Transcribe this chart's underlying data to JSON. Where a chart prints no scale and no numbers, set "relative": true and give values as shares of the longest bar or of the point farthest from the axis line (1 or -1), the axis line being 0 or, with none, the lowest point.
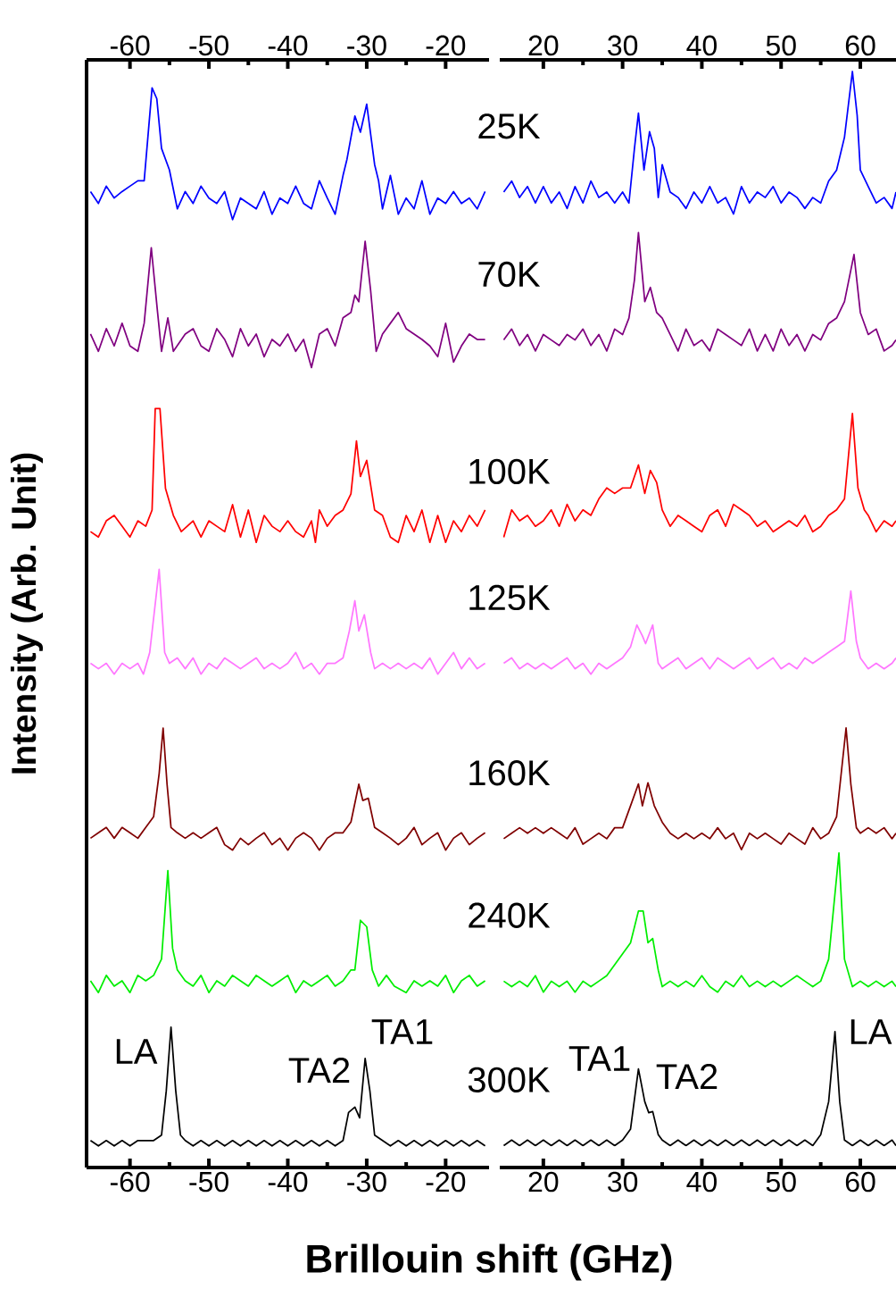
{
  "chart_data": [
    {
      "type": "line",
      "relative": true,
      "ylabel": "Intensity (Arb. Unit)",
      "xlabel": "Brillouin shift (GHz)",
      "xlim": [
        -65.5,
        -14.5
      ],
      "xticks": [
        -60,
        -50,
        -40,
        -30,
        -20
      ],
      "x2lim": [
        -65.5,
        -14.5
      ],
      "x2ticks": [
        -60,
        -50,
        -40,
        -30,
        -20
      ],
      "marker": "none",
      "annotations": [
        "LA",
        "TA2",
        "TA1"
      ],
      "series": [
        {
          "color": "#0000ff",
          "x": [
            -65,
            -64,
            -63,
            -62,
            -61,
            -60,
            -59,
            -58.2,
            -57.2,
            -56.6,
            -56,
            -55,
            -54,
            -53,
            -52,
            -51,
            -50,
            -49,
            -48,
            -47,
            -46,
            -45,
            -44,
            -43,
            -42,
            -41,
            -40,
            -39,
            -38,
            -37,
            -36,
            -35,
            -34,
            -33,
            -32.5,
            -31.5,
            -30.8,
            -30,
            -29,
            -28.5,
            -28,
            -27,
            -26,
            -25,
            -24,
            -23,
            -22,
            -21,
            -20,
            -19,
            -18,
            -17,
            -16,
            -15
          ],
          "values": [
            0.904,
            0.893,
            0.909,
            0.898,
            0.904,
            0.909,
            0.914,
            0.914,
            1,
            0.99,
            0.944,
            0.924,
            0.888,
            0.904,
            0.893,
            0.909,
            0.898,
            0.893,
            0.904,
            0.878,
            0.898,
            0.893,
            0.888,
            0.904,
            0.883,
            0.898,
            0.893,
            0.909,
            0.893,
            0.888,
            0.914,
            0.898,
            0.883,
            0.919,
            0.934,
            0.974,
            0.959,
            0.985,
            0.929,
            0.914,
            0.888,
            0.919,
            0.883,
            0.898,
            0.888,
            0.914,
            0.883,
            0.898,
            0.893,
            0.904,
            0.893,
            0.898,
            0.888,
            0.904
          ]
        },
        {
          "color": "#800080",
          "x": [
            -65,
            -64,
            -63,
            -62,
            -61,
            -60,
            -59,
            -58.2,
            -57.3,
            -56.5,
            -56,
            -55.2,
            -54.5,
            -53,
            -52,
            -51,
            -50,
            -49,
            -48,
            -47,
            -46,
            -45,
            -44,
            -43,
            -42,
            -41,
            -40,
            -39,
            -38,
            -37,
            -36,
            -35,
            -34,
            -33,
            -32,
            -31.5,
            -31,
            -30.2,
            -29.5,
            -28.8,
            -28,
            -27,
            -26,
            -25,
            -24,
            -23,
            -22,
            -21,
            -20,
            -19,
            -18,
            -17,
            -16,
            -15
          ],
          "values": [
            0.772,
            0.756,
            0.777,
            0.761,
            0.782,
            0.761,
            0.756,
            0.782,
            0.852,
            0.792,
            0.756,
            0.787,
            0.756,
            0.772,
            0.777,
            0.761,
            0.756,
            0.777,
            0.767,
            0.751,
            0.777,
            0.761,
            0.772,
            0.751,
            0.767,
            0.761,
            0.772,
            0.756,
            0.767,
            0.741,
            0.772,
            0.777,
            0.761,
            0.787,
            0.792,
            0.808,
            0.802,
            0.858,
            0.812,
            0.756,
            0.772,
            0.782,
            0.792,
            0.777,
            0.772,
            0.767,
            0.761,
            0.751,
            0.782,
            0.746,
            0.761,
            0.772,
            0.767,
            0.767
          ]
        },
        {
          "color": "#ff0000",
          "x": [
            -65,
            -64,
            -63,
            -62,
            -61,
            -60,
            -59,
            -58,
            -57.2,
            -56.8,
            -56.2,
            -55.5,
            -54.5,
            -53.5,
            -52,
            -51,
            -50,
            -49,
            -48,
            -47,
            -46,
            -45,
            -44,
            -43,
            -42,
            -41,
            -40,
            -39,
            -38,
            -37,
            -36.5,
            -36,
            -35,
            -34,
            -33,
            -32,
            -31.3,
            -30.8,
            -30,
            -29,
            -28,
            -27,
            -26,
            -25,
            -24,
            -23,
            -22,
            -21,
            -20,
            -19,
            -18,
            -17,
            -16,
            -15
          ],
          "values": [
            0.589,
            0.584,
            0.599,
            0.604,
            0.594,
            0.584,
            0.599,
            0.594,
            0.609,
            0.703,
            0.703,
            0.629,
            0.604,
            0.589,
            0.599,
            0.584,
            0.599,
            0.594,
            0.589,
            0.614,
            0.584,
            0.609,
            0.579,
            0.604,
            0.594,
            0.589,
            0.599,
            0.589,
            0.584,
            0.599,
            0.579,
            0.609,
            0.594,
            0.604,
            0.609,
            0.624,
            0.673,
            0.64,
            0.655,
            0.609,
            0.604,
            0.584,
            0.579,
            0.604,
            0.589,
            0.609,
            0.579,
            0.604,
            0.579,
            0.599,
            0.589,
            0.604,
            0.594,
            0.609
          ]
        },
        {
          "color": "#ff77ff",
          "x": [
            -65,
            -64,
            -63,
            -62,
            -61,
            -60,
            -59,
            -58.3,
            -57.5,
            -56.3,
            -55.6,
            -55,
            -54,
            -53,
            -52,
            -51,
            -50,
            -49,
            -48,
            -47,
            -46,
            -45,
            -44,
            -43,
            -42,
            -41,
            -40,
            -39,
            -38,
            -37,
            -36,
            -35,
            -34,
            -33,
            -32.2,
            -31.5,
            -31,
            -30.3,
            -29.5,
            -29,
            -28,
            -27,
            -26,
            -25,
            -24,
            -23,
            -22,
            -21,
            -20,
            -19,
            -18,
            -17,
            -16,
            -15
          ],
          "values": [
            0.467,
            0.462,
            0.467,
            0.457,
            0.467,
            0.462,
            0.467,
            0.457,
            0.477,
            0.554,
            0.477,
            0.467,
            0.472,
            0.462,
            0.472,
            0.457,
            0.467,
            0.462,
            0.472,
            0.467,
            0.462,
            0.467,
            0.472,
            0.462,
            0.467,
            0.462,
            0.467,
            0.477,
            0.462,
            0.467,
            0.457,
            0.467,
            0.467,
            0.472,
            0.497,
            0.525,
            0.497,
            0.512,
            0.477,
            0.462,
            0.467,
            0.462,
            0.467,
            0.462,
            0.467,
            0.462,
            0.472,
            0.457,
            0.467,
            0.477,
            0.462,
            0.472,
            0.462,
            0.467
          ]
        },
        {
          "color": "#800000",
          "x": [
            -65,
            -64,
            -63,
            -62,
            -61,
            -60,
            -59,
            -58,
            -57,
            -56.3,
            -55.8,
            -55.3,
            -54.8,
            -54,
            -53,
            -52,
            -51,
            -50,
            -49,
            -48,
            -47,
            -46,
            -45,
            -44,
            -43,
            -42,
            -41,
            -40,
            -39,
            -38,
            -37,
            -36,
            -35,
            -34,
            -33,
            -32,
            -31,
            -30.5,
            -29.8,
            -29,
            -28,
            -27,
            -26,
            -25,
            -24,
            -23,
            -22,
            -21,
            -20,
            -19,
            -18,
            -17,
            -16,
            -15
          ],
          "values": [
            0.305,
            0.31,
            0.315,
            0.305,
            0.315,
            0.31,
            0.305,
            0.315,
            0.325,
            0.365,
            0.407,
            0.355,
            0.315,
            0.31,
            0.305,
            0.31,
            0.305,
            0.31,
            0.315,
            0.299,
            0.294,
            0.305,
            0.299,
            0.305,
            0.31,
            0.299,
            0.305,
            0.294,
            0.305,
            0.31,
            0.305,
            0.294,
            0.305,
            0.31,
            0.31,
            0.32,
            0.355,
            0.34,
            0.342,
            0.315,
            0.31,
            0.305,
            0.299,
            0.305,
            0.315,
            0.299,
            0.305,
            0.31,
            0.294,
            0.305,
            0.31,
            0.299,
            0.305,
            0.31
          ]
        },
        {
          "color": "#00ee00",
          "x": [
            -65,
            -64,
            -63,
            -62,
            -61,
            -60,
            -59,
            -58,
            -57,
            -56,
            -55.2,
            -54.6,
            -54,
            -53,
            -52,
            -51,
            -50,
            -49,
            -48,
            -47,
            -46,
            -45,
            -44,
            -43,
            -42,
            -41,
            -40,
            -39,
            -38,
            -37,
            -36,
            -35,
            -34,
            -33,
            -32,
            -31.5,
            -30.8,
            -30,
            -29.3,
            -28.5,
            -27.5,
            -26.5,
            -25,
            -24,
            -23,
            -22,
            -21,
            -20,
            -19,
            -18,
            -17,
            -16,
            -15
          ],
          "values": [
            0.173,
            0.162,
            0.178,
            0.168,
            0.173,
            0.162,
            0.178,
            0.173,
            0.178,
            0.193,
            0.275,
            0.203,
            0.183,
            0.173,
            0.168,
            0.178,
            0.162,
            0.173,
            0.168,
            0.178,
            0.173,
            0.168,
            0.178,
            0.173,
            0.168,
            0.173,
            0.178,
            0.162,
            0.173,
            0.168,
            0.173,
            0.178,
            0.168,
            0.173,
            0.183,
            0.183,
            0.229,
            0.223,
            0.183,
            0.168,
            0.178,
            0.168,
            0.162,
            0.173,
            0.168,
            0.173,
            0.168,
            0.178,
            0.162,
            0.173,
            0.178,
            0.168,
            0.173
          ]
        },
        {
          "color": "#000000",
          "x": [
            -65,
            -64,
            -63,
            -62,
            -61,
            -60,
            -59,
            -58,
            -57,
            -56,
            -55.4,
            -54.8,
            -54.2,
            -53.6,
            -53,
            -52,
            -51,
            -50,
            -49,
            -48,
            -47,
            -46,
            -45,
            -44,
            -43,
            -42,
            -41,
            -40,
            -39,
            -38,
            -37,
            -36,
            -35,
            -34,
            -33,
            -32.3,
            -31.5,
            -30.9,
            -30.2,
            -29.6,
            -29,
            -28,
            -27,
            -26,
            -25,
            -24,
            -23,
            -22,
            -21,
            -20,
            -19,
            -18,
            -17,
            -16,
            -15
          ],
          "values": [
            0.025,
            0.02,
            0.025,
            0.02,
            0.025,
            0.02,
            0.025,
            0.025,
            0.025,
            0.03,
            0.071,
            0.13,
            0.071,
            0.03,
            0.025,
            0.02,
            0.025,
            0.02,
            0.025,
            0.02,
            0.025,
            0.02,
            0.025,
            0.02,
            0.025,
            0.02,
            0.025,
            0.02,
            0.025,
            0.02,
            0.025,
            0.02,
            0.025,
            0.02,
            0.025,
            0.051,
            0.056,
            0.046,
            0.101,
            0.071,
            0.03,
            0.025,
            0.02,
            0.025,
            0.02,
            0.025,
            0.02,
            0.025,
            0.02,
            0.025,
            0.02,
            0.025,
            0.02,
            0.025,
            0.02
          ]
        }
      ]
    },
    {
      "type": "line",
      "relative": true,
      "xlim": [
        14.5,
        64.5
      ],
      "xticks": [
        20,
        30,
        40,
        50,
        60
      ],
      "x2lim": [
        14.5,
        64.5
      ],
      "x2ticks": [
        20,
        30,
        40,
        50,
        60
      ],
      "marker": "none",
      "annotations": [
        "TA1",
        "TA2",
        "LA"
      ],
      "series": [
        {
          "name": "25K",
          "color": "#0000ff",
          "x": [
            15,
            16,
            17,
            18,
            19,
            20,
            21,
            22,
            23,
            24,
            25,
            26,
            27,
            28,
            29,
            30,
            30.8,
            31.5,
            32,
            32.7,
            33.4,
            34,
            34.5,
            35,
            36,
            37,
            38,
            39,
            40,
            41,
            42,
            43,
            44,
            45,
            46,
            47,
            48,
            49,
            50,
            51,
            52,
            53,
            54,
            55,
            56,
            57,
            58,
            59,
            59.6,
            60,
            61,
            62,
            63,
            64,
            64.5
          ],
          "values": [
            0.89,
            0.9,
            0.885,
            0.895,
            0.88,
            0.895,
            0.88,
            0.89,
            0.875,
            0.895,
            0.88,
            0.9,
            0.885,
            0.89,
            0.88,
            0.89,
            0.88,
            0.93,
            0.962,
            0.91,
            0.945,
            0.93,
            0.885,
            0.915,
            0.89,
            0.885,
            0.875,
            0.89,
            0.88,
            0.895,
            0.88,
            0.885,
            0.87,
            0.895,
            0.88,
            0.89,
            0.885,
            0.895,
            0.88,
            0.89,
            0.885,
            0.875,
            0.885,
            0.88,
            0.9,
            0.91,
            0.94,
            1,
            0.96,
            0.91,
            0.895,
            0.88,
            0.885,
            0.875,
            0.89
          ]
        },
        {
          "name": "70K",
          "color": "#800080",
          "x": [
            15,
            16,
            17,
            18,
            19,
            20,
            21,
            22,
            23,
            24,
            25,
            26,
            27,
            28,
            29,
            30,
            30.8,
            31.5,
            32,
            32.8,
            33.5,
            34.3,
            35,
            36,
            37,
            38,
            39,
            40,
            41,
            42,
            43,
            44,
            45,
            46,
            47,
            48,
            49,
            50,
            51,
            52,
            53,
            54,
            55,
            56,
            57,
            58,
            59.2,
            60,
            61,
            62,
            63,
            64,
            64.5
          ],
          "values": [
            0.755,
            0.765,
            0.75,
            0.76,
            0.745,
            0.76,
            0.755,
            0.75,
            0.76,
            0.755,
            0.765,
            0.75,
            0.76,
            0.745,
            0.765,
            0.76,
            0.775,
            0.81,
            0.853,
            0.79,
            0.803,
            0.78,
            0.775,
            0.76,
            0.745,
            0.765,
            0.75,
            0.755,
            0.745,
            0.765,
            0.76,
            0.755,
            0.75,
            0.765,
            0.745,
            0.76,
            0.745,
            0.765,
            0.75,
            0.76,
            0.745,
            0.76,
            0.755,
            0.77,
            0.775,
            0.79,
            0.833,
            0.78,
            0.76,
            0.765,
            0.745,
            0.75,
            0.755
          ]
        },
        {
          "name": "100K",
          "color": "#ff0000",
          "x": [
            15,
            16,
            17,
            18,
            19,
            20,
            21,
            22,
            23,
            24,
            25,
            26,
            27,
            28,
            29,
            30,
            31,
            32,
            32.8,
            33.5,
            34.3,
            35,
            36,
            37,
            38,
            39,
            40,
            41,
            42,
            43,
            44,
            45,
            46,
            47,
            48,
            49,
            50,
            51,
            52,
            53,
            54,
            55,
            56,
            57,
            58,
            59,
            59.7,
            60.5,
            61,
            62,
            63,
            64,
            64.5
          ],
          "values": [
            0.575,
            0.6,
            0.59,
            0.595,
            0.585,
            0.59,
            0.6,
            0.585,
            0.605,
            0.59,
            0.6,
            0.595,
            0.61,
            0.62,
            0.615,
            0.62,
            0.62,
            0.641,
            0.615,
            0.636,
            0.625,
            0.6,
            0.585,
            0.595,
            0.59,
            0.585,
            0.58,
            0.595,
            0.6,
            0.585,
            0.605,
            0.6,
            0.595,
            0.585,
            0.59,
            0.58,
            0.585,
            0.59,
            0.585,
            0.595,
            0.58,
            0.585,
            0.595,
            0.6,
            0.61,
            0.688,
            0.62,
            0.6,
            0.595,
            0.58,
            0.59,
            0.585,
            0.59
          ]
        },
        {
          "name": "125K",
          "color": "#ff77ff",
          "x": [
            15,
            16,
            17,
            18,
            19,
            20,
            21,
            22,
            23,
            24,
            25,
            26,
            27,
            28,
            29,
            30,
            31,
            31.8,
            32.5,
            32.9,
            33.8,
            34.5,
            35,
            36,
            37,
            38,
            39,
            40,
            41,
            42,
            43,
            44,
            45,
            46,
            47,
            48,
            49,
            50,
            51,
            52,
            53,
            54,
            55,
            56,
            57,
            58,
            58.8,
            59.5,
            60,
            61,
            62,
            63,
            64,
            64.5
          ],
          "values": [
            0.46,
            0.465,
            0.455,
            0.46,
            0.455,
            0.46,
            0.455,
            0.46,
            0.465,
            0.455,
            0.46,
            0.45,
            0.46,
            0.455,
            0.46,
            0.465,
            0.475,
            0.495,
            0.485,
            0.478,
            0.495,
            0.46,
            0.455,
            0.46,
            0.465,
            0.455,
            0.46,
            0.465,
            0.455,
            0.465,
            0.46,
            0.455,
            0.46,
            0.465,
            0.455,
            0.46,
            0.465,
            0.455,
            0.46,
            0.455,
            0.465,
            0.46,
            0.465,
            0.47,
            0.475,
            0.48,
            0.526,
            0.48,
            0.465,
            0.455,
            0.46,
            0.455,
            0.46,
            0.465
          ]
        },
        {
          "name": "160K",
          "color": "#800000",
          "x": [
            15,
            16,
            17,
            18,
            19,
            20,
            21,
            22,
            23,
            24,
            25,
            26,
            27,
            28,
            29,
            30,
            31,
            32,
            32.5,
            33.2,
            34,
            35,
            36,
            37,
            38,
            39,
            40,
            41,
            42,
            43,
            44,
            45,
            46,
            47,
            48,
            49,
            50,
            51,
            52,
            53,
            54,
            55,
            56,
            57,
            58.2,
            58.8,
            59.5,
            60,
            61,
            62,
            63,
            64,
            64.5
          ],
          "values": [
            0.3,
            0.305,
            0.31,
            0.305,
            0.31,
            0.305,
            0.31,
            0.305,
            0.3,
            0.31,
            0.295,
            0.3,
            0.305,
            0.3,
            0.31,
            0.31,
            0.33,
            0.35,
            0.33,
            0.351,
            0.33,
            0.315,
            0.305,
            0.3,
            0.305,
            0.3,
            0.305,
            0.3,
            0.31,
            0.3,
            0.305,
            0.29,
            0.305,
            0.3,
            0.305,
            0.3,
            0.295,
            0.305,
            0.3,
            0.295,
            0.31,
            0.3,
            0.305,
            0.32,
            0.401,
            0.35,
            0.31,
            0.305,
            0.31,
            0.305,
            0.31,
            0.3,
            0.305
          ]
        },
        {
          "name": "240K",
          "color": "#00ee00",
          "x": [
            15,
            16,
            17,
            18,
            19,
            20,
            21,
            22,
            23,
            24,
            25,
            26,
            27,
            28,
            29,
            30,
            31,
            32,
            32.6,
            33.2,
            33.8,
            34.5,
            35,
            36,
            37,
            38,
            39,
            40,
            41,
            42,
            43,
            44,
            45,
            46,
            47,
            48,
            49,
            50,
            51,
            52,
            53,
            54,
            55,
            56,
            57.3,
            58,
            59,
            60,
            61,
            62,
            63,
            64,
            64.5
          ],
          "values": [
            0.17,
            0.165,
            0.17,
            0.165,
            0.175,
            0.16,
            0.17,
            0.165,
            0.17,
            0.16,
            0.17,
            0.165,
            0.17,
            0.175,
            0.185,
            0.195,
            0.205,
            0.234,
            0.234,
            0.205,
            0.209,
            0.18,
            0.165,
            0.17,
            0.165,
            0.17,
            0.165,
            0.175,
            0.165,
            0.16,
            0.17,
            0.165,
            0.175,
            0.165,
            0.17,
            0.165,
            0.17,
            0.165,
            0.17,
            0.175,
            0.17,
            0.165,
            0.17,
            0.19,
            0.287,
            0.19,
            0.165,
            0.17,
            0.165,
            0.17,
            0.165,
            0.17,
            0.165
          ]
        },
        {
          "name": "300K",
          "color": "#000000",
          "x": [
            15,
            16,
            17,
            18,
            19,
            20,
            21,
            22,
            23,
            24,
            25,
            26,
            27,
            28,
            29,
            30,
            31,
            32,
            32.8,
            33.3,
            33.8,
            34.5,
            35,
            36,
            37,
            38,
            39,
            40,
            41,
            42,
            43,
            44,
            45,
            46,
            47,
            48,
            49,
            50,
            51,
            52,
            53,
            54,
            55,
            56,
            56.8,
            57.4,
            58,
            59,
            60,
            61,
            62,
            63,
            64,
            64.5
          ],
          "values": [
            0.02,
            0.025,
            0.02,
            0.025,
            0.02,
            0.025,
            0.02,
            0.025,
            0.02,
            0.025,
            0.02,
            0.025,
            0.02,
            0.025,
            0.02,
            0.025,
            0.035,
            0.09,
            0.06,
            0.05,
            0.051,
            0.03,
            0.025,
            0.02,
            0.025,
            0.02,
            0.025,
            0.02,
            0.025,
            0.02,
            0.025,
            0.02,
            0.025,
            0.02,
            0.025,
            0.02,
            0.025,
            0.02,
            0.025,
            0.02,
            0.025,
            0.02,
            0.03,
            0.06,
            0.124,
            0.06,
            0.025,
            0.02,
            0.025,
            0.02,
            0.025,
            0.02,
            0.025,
            0.02
          ]
        }
      ]
    }
  ]
}
